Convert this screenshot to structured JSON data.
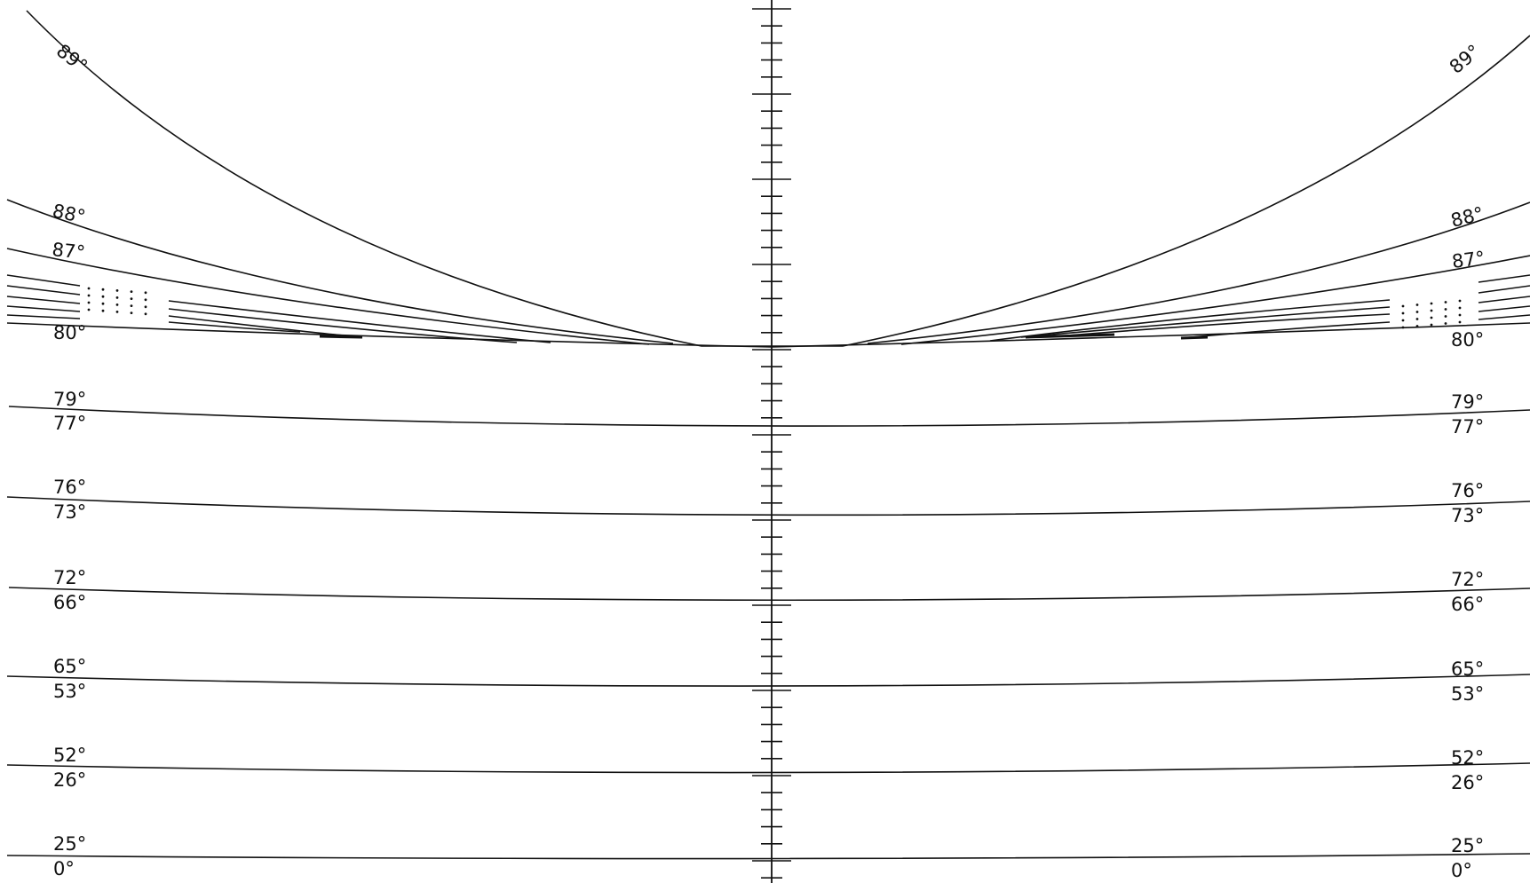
{
  "labels": {
    "deg_89": "89°",
    "deg_88": "88°",
    "deg_87": "87°",
    "deg_80": "80°",
    "deg_79": "79°",
    "deg_77": "77°",
    "deg_76": "76°",
    "deg_73": "73°",
    "deg_72": "72°",
    "deg_66": "66°",
    "deg_65": "65°",
    "deg_53": "53°",
    "deg_52": "52°",
    "deg_26": "26°",
    "deg_25": "25°",
    "deg_0": "0°"
  },
  "colors": {
    "line": "#111111",
    "background": "#ffffff"
  }
}
